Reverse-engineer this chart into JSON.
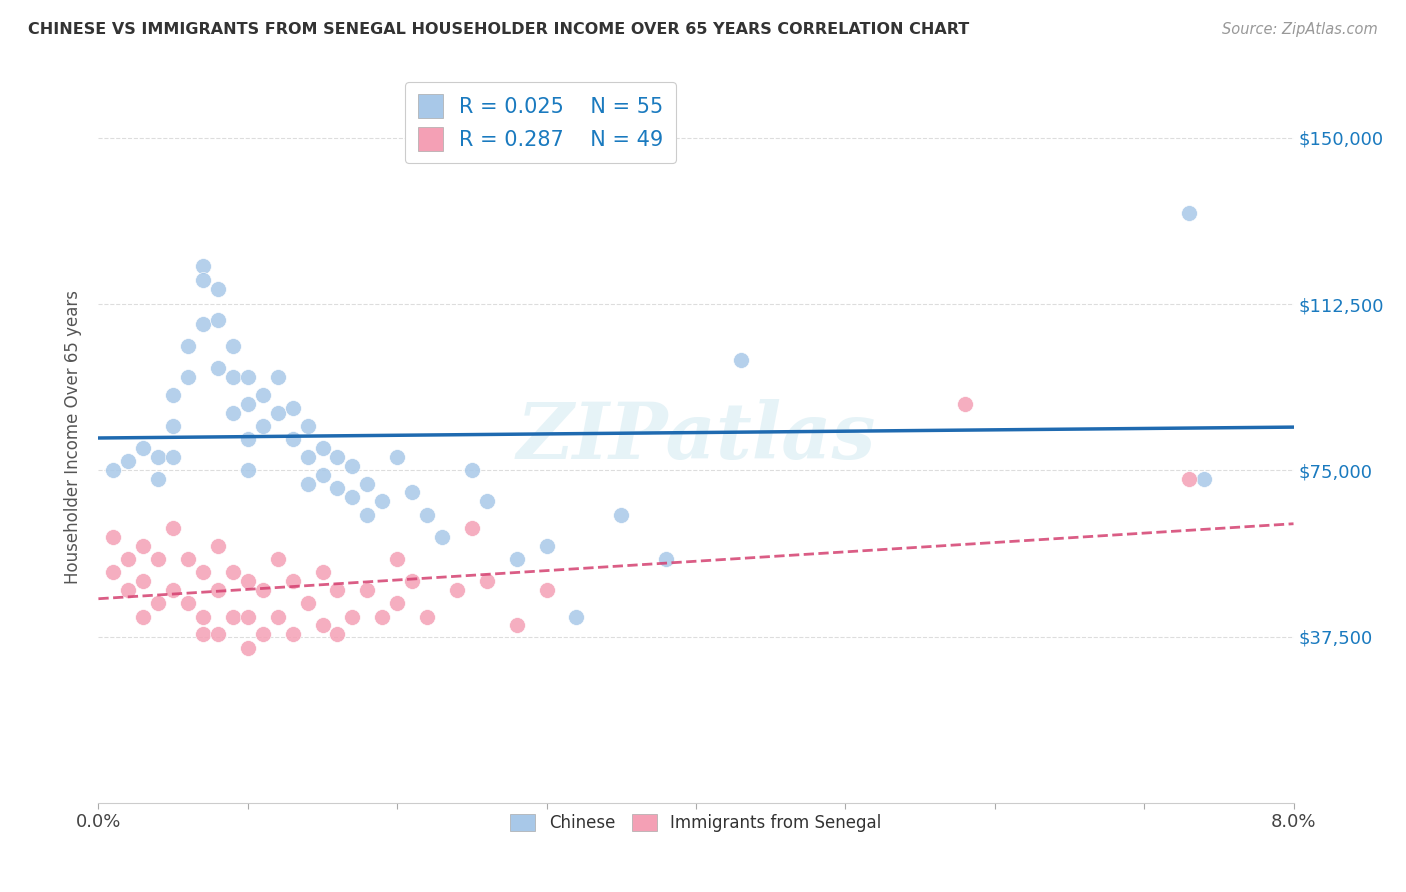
{
  "title": "CHINESE VS IMMIGRANTS FROM SENEGAL HOUSEHOLDER INCOME OVER 65 YEARS CORRELATION CHART",
  "source": "Source: ZipAtlas.com",
  "ylabel": "Householder Income Over 65 years",
  "xmin": 0.0,
  "xmax": 0.08,
  "ymin": 0,
  "ymax": 165000,
  "yticks": [
    37500,
    75000,
    112500,
    150000
  ],
  "xticks": [
    0.0,
    0.01,
    0.02,
    0.03,
    0.04,
    0.05,
    0.06,
    0.07,
    0.08
  ],
  "watermark": "ZIPatlas",
  "legend_r_chinese": "0.025",
  "legend_n_chinese": "55",
  "legend_r_senegal": "0.287",
  "legend_n_senegal": "49",
  "chinese_color": "#a8c8e8",
  "senegal_color": "#f4a0b5",
  "chinese_line_color": "#1f6ab0",
  "senegal_line_color": "#d44070",
  "background_color": "#ffffff",
  "grid_color": "#dddddd",
  "chinese_x": [
    0.001,
    0.002,
    0.003,
    0.004,
    0.004,
    0.005,
    0.005,
    0.005,
    0.006,
    0.006,
    0.007,
    0.007,
    0.007,
    0.008,
    0.008,
    0.008,
    0.009,
    0.009,
    0.009,
    0.01,
    0.01,
    0.01,
    0.01,
    0.011,
    0.011,
    0.012,
    0.012,
    0.013,
    0.013,
    0.014,
    0.014,
    0.014,
    0.015,
    0.015,
    0.016,
    0.016,
    0.017,
    0.017,
    0.018,
    0.018,
    0.019,
    0.02,
    0.021,
    0.022,
    0.023,
    0.025,
    0.026,
    0.028,
    0.03,
    0.032,
    0.035,
    0.038,
    0.043,
    0.073,
    0.074
  ],
  "chinese_y": [
    75000,
    77000,
    80000,
    78000,
    73000,
    92000,
    85000,
    78000,
    103000,
    96000,
    121000,
    118000,
    108000,
    116000,
    109000,
    98000,
    103000,
    96000,
    88000,
    96000,
    90000,
    82000,
    75000,
    92000,
    85000,
    96000,
    88000,
    89000,
    82000,
    85000,
    78000,
    72000,
    80000,
    74000,
    78000,
    71000,
    76000,
    69000,
    72000,
    65000,
    68000,
    78000,
    70000,
    65000,
    60000,
    75000,
    68000,
    55000,
    58000,
    42000,
    65000,
    55000,
    100000,
    133000,
    73000
  ],
  "senegal_x": [
    0.001,
    0.001,
    0.002,
    0.002,
    0.003,
    0.003,
    0.003,
    0.004,
    0.004,
    0.005,
    0.005,
    0.006,
    0.006,
    0.007,
    0.007,
    0.007,
    0.008,
    0.008,
    0.008,
    0.009,
    0.009,
    0.01,
    0.01,
    0.01,
    0.011,
    0.011,
    0.012,
    0.012,
    0.013,
    0.013,
    0.014,
    0.015,
    0.015,
    0.016,
    0.016,
    0.017,
    0.018,
    0.019,
    0.02,
    0.02,
    0.021,
    0.022,
    0.024,
    0.025,
    0.026,
    0.028,
    0.03,
    0.058,
    0.073
  ],
  "senegal_y": [
    60000,
    52000,
    55000,
    48000,
    58000,
    50000,
    42000,
    55000,
    45000,
    62000,
    48000,
    55000,
    45000,
    52000,
    42000,
    38000,
    58000,
    48000,
    38000,
    52000,
    42000,
    50000,
    42000,
    35000,
    48000,
    38000,
    55000,
    42000,
    50000,
    38000,
    45000,
    52000,
    40000,
    48000,
    38000,
    42000,
    48000,
    42000,
    55000,
    45000,
    50000,
    42000,
    48000,
    62000,
    50000,
    40000,
    48000,
    90000,
    73000
  ]
}
